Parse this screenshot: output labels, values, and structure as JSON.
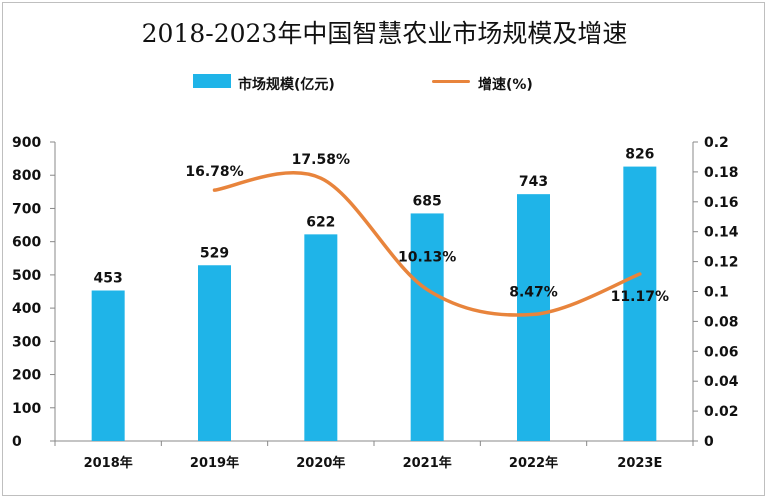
{
  "chart_data": {
    "type": "bar",
    "title": "2018-2023年中国智慧农业市场规模及增速",
    "categories": [
      "2018年",
      "2019年",
      "2020年",
      "2021年",
      "2022年",
      "2023E"
    ],
    "series": [
      {
        "name": "市场规模(亿元)",
        "type": "bar",
        "axis": "left",
        "values": [
          453,
          529,
          622,
          685,
          743,
          826
        ],
        "labels": [
          "453",
          "529",
          "622",
          "685",
          "743",
          "826"
        ]
      },
      {
        "name": "增速(%)",
        "type": "line",
        "axis": "right",
        "values": [
          null,
          0.1678,
          0.1758,
          0.1013,
          0.0847,
          0.1117
        ],
        "labels": [
          "",
          "16.78%",
          "17.58%",
          "10.13%",
          "8.47%",
          "11.17%"
        ]
      }
    ],
    "ylim_left": [
      0,
      900
    ],
    "yticks_left": [
      "0",
      "100",
      "200",
      "300",
      "400",
      "500",
      "600",
      "700",
      "800",
      "900"
    ],
    "ylim_right": [
      0,
      0.2
    ],
    "yticks_right": [
      "0",
      "0.02",
      "0.04",
      "0.06",
      "0.08",
      "0.1",
      "0.12",
      "0.14",
      "0.16",
      "0.18",
      "0.2"
    ],
    "legend": "top",
    "grid": false,
    "colors": {
      "bar": "#1fb4e8",
      "line": "#e8843c",
      "axis": "#888888"
    }
  }
}
